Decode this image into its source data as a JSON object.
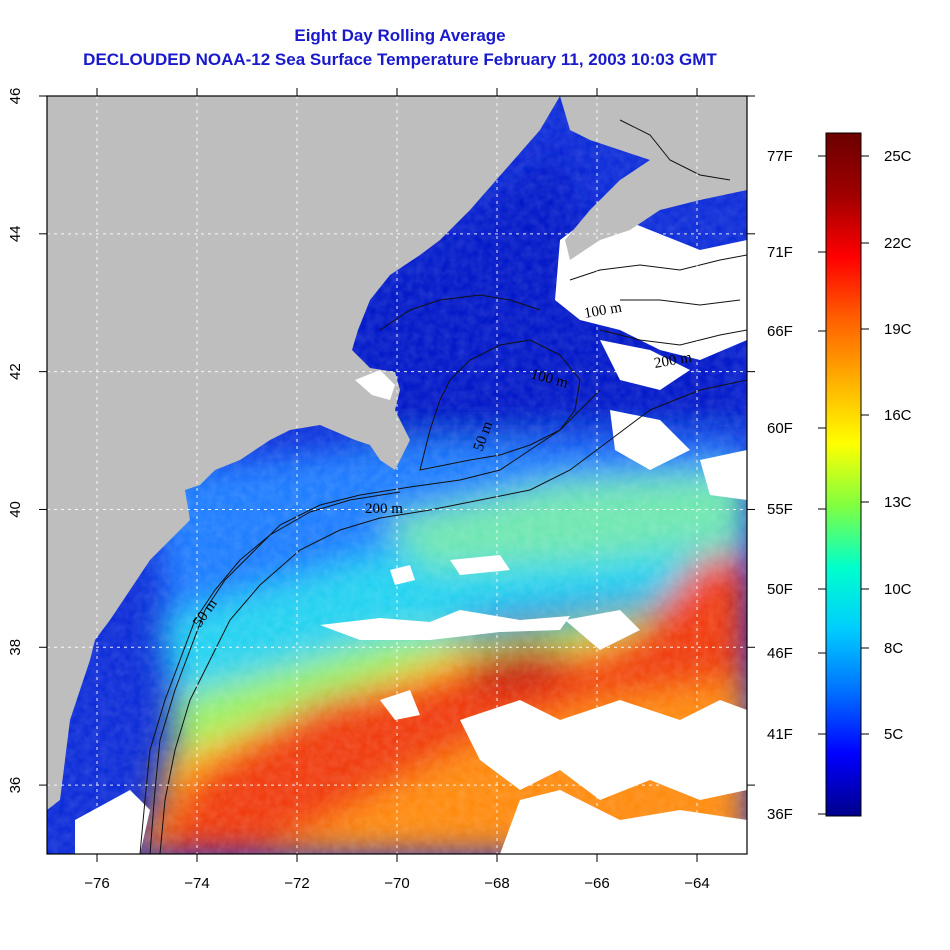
{
  "title_line1": "Eight Day Rolling Average",
  "title_line2": "DECLOUDED NOAA-12 Sea Surface Temperature February 11, 2003 10:03 GMT",
  "map": {
    "lon_range": [
      -77,
      -63
    ],
    "lat_range": [
      35,
      46
    ],
    "lon_ticks": [
      -76,
      -74,
      -72,
      -70,
      -68,
      -66,
      -64
    ],
    "lat_ticks": [
      36,
      38,
      40,
      42,
      44,
      46
    ],
    "lon_tick_labels": [
      "−76",
      "−74",
      "−72",
      "−70",
      "−68",
      "−66",
      "−64"
    ],
    "lat_tick_labels": [
      "36",
      "38",
      "40",
      "42",
      "44",
      "46"
    ],
    "grid": true,
    "land_color": "#bebebe",
    "cloud_color": "#ffffff",
    "contour_labels": [
      "50 m",
      "200 m",
      "100 m",
      "50 m",
      "100 m",
      "200 m"
    ]
  },
  "colorbar": {
    "celsius_labels": [
      "25C",
      "22C",
      "19C",
      "16C",
      "13C",
      "10C",
      "8C",
      "5C"
    ],
    "fahrenheit_labels": [
      "77F",
      "71F",
      "66F",
      "60F",
      "55F",
      "50F",
      "46F",
      "41F",
      "36F"
    ],
    "stops": [
      "#00008b",
      "#0000ff",
      "#0070ff",
      "#00ccff",
      "#00ffcc",
      "#80ff40",
      "#ffff00",
      "#ffb000",
      "#ff6000",
      "#ff0000",
      "#a00000",
      "#6b0000"
    ]
  }
}
